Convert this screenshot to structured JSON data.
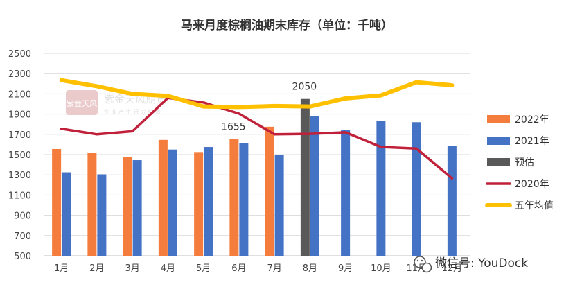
{
  "chart_data": {
    "type": "bar",
    "title": "马来月度棕榈油期末库存（单位：千吨）",
    "categories": [
      "1月",
      "2月",
      "3月",
      "4月",
      "5月",
      "6月",
      "7月",
      "8月",
      "9月",
      "10月",
      "11月",
      "12月"
    ],
    "ylim": [
      500,
      2500
    ],
    "yticks": [
      500,
      700,
      900,
      1100,
      1300,
      1500,
      1700,
      1900,
      2100,
      2300,
      2500
    ],
    "grid": true,
    "legend_position": "right",
    "series": [
      {
        "name": "2022年",
        "kind": "bar",
        "color": "#F47C3C",
        "values": [
          1555,
          1520,
          1478,
          1645,
          1525,
          1655,
          1775,
          null,
          null,
          null,
          null,
          null
        ]
      },
      {
        "name": "2021年",
        "kind": "bar",
        "color": "#4472C4",
        "values": [
          1325,
          1305,
          1445,
          1550,
          1575,
          1615,
          1500,
          1880,
          1745,
          1835,
          1820,
          1585
        ]
      },
      {
        "name": "预估",
        "kind": "bar",
        "color": "#595959",
        "values": [
          null,
          null,
          null,
          null,
          null,
          null,
          null,
          2050,
          null,
          null,
          null,
          null
        ]
      },
      {
        "name": "2020年",
        "kind": "line",
        "color": "#C0203A",
        "values": [
          1755,
          1700,
          1730,
          2060,
          2015,
          1905,
          1700,
          1705,
          1720,
          1575,
          1560,
          1265
        ]
      },
      {
        "name": "五年均值",
        "kind": "line",
        "color": "#FFC000",
        "values": [
          2235,
          2175,
          2100,
          2080,
          1975,
          1970,
          1980,
          1975,
          2055,
          2085,
          2215,
          2185
        ]
      }
    ],
    "annotations": [
      {
        "text": "1655",
        "category": "6月",
        "value": 1655
      },
      {
        "text": "2050",
        "category": "8月",
        "value": 2050
      }
    ]
  },
  "watermark": {
    "brand": "紫金天风期货",
    "subtitle": "专 业 产 生 研 究 价 值",
    "seal": "紫金天风"
  },
  "wechat": {
    "label": "微信号: YouDock",
    "icon": "wechat-icon"
  }
}
